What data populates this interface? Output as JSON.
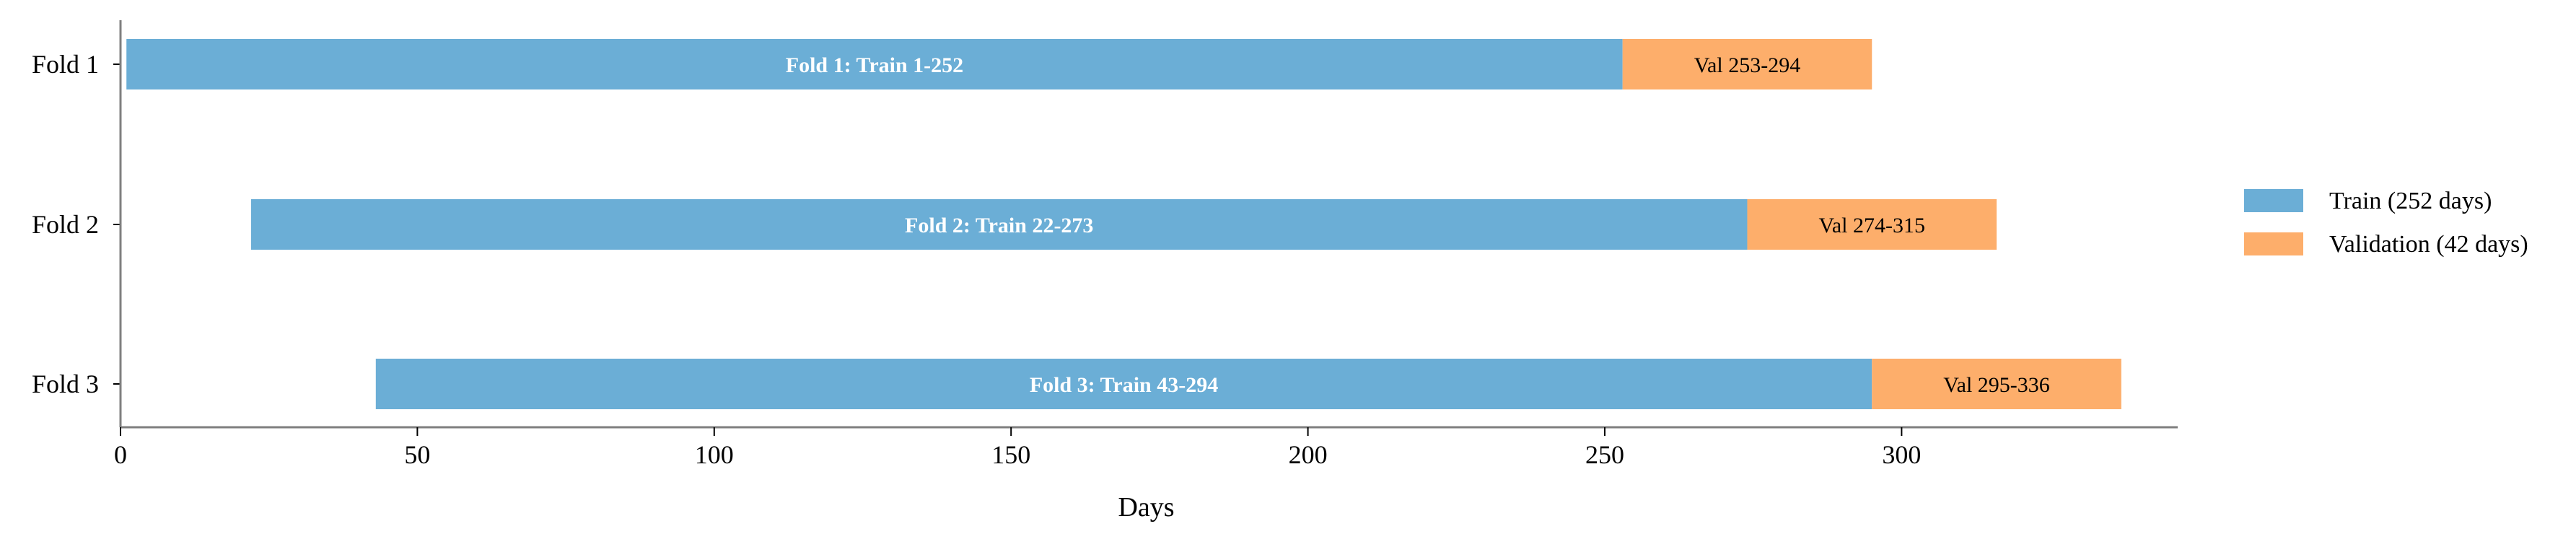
{
  "chart_data": {
    "type": "bar",
    "orientation": "horizontal-gantt",
    "title": "",
    "xlabel": "Days",
    "ylabel": "",
    "xlim": [
      0,
      346.5
    ],
    "xticks": [
      0,
      50,
      100,
      150,
      200,
      250,
      300
    ],
    "grid": false,
    "legend_position": "right",
    "colors": {
      "train": "#6baed6",
      "val": "#fdae6b",
      "train_label_color": "#ffffff",
      "val_label_color": "#000000",
      "axis": "#7f7f7f"
    },
    "series": [
      {
        "key": "train",
        "name": "Train (252 days)"
      },
      {
        "key": "val",
        "name": "Validation (42 days)"
      }
    ],
    "folds": [
      {
        "label": "Fold 1",
        "train": {
          "start": 1,
          "end": 253,
          "label": "Fold 1: Train 1-252"
        },
        "val": {
          "start": 253,
          "end": 295,
          "label": "Val 253-294"
        }
      },
      {
        "label": "Fold 2",
        "train": {
          "start": 22,
          "end": 274,
          "label": "Fold 2: Train 22-273"
        },
        "val": {
          "start": 274,
          "end": 316,
          "label": "Val 274-315"
        }
      },
      {
        "label": "Fold 3",
        "train": {
          "start": 43,
          "end": 295,
          "label": "Fold 3: Train 43-294"
        },
        "val": {
          "start": 295,
          "end": 337,
          "label": "Val 295-336"
        }
      }
    ]
  }
}
